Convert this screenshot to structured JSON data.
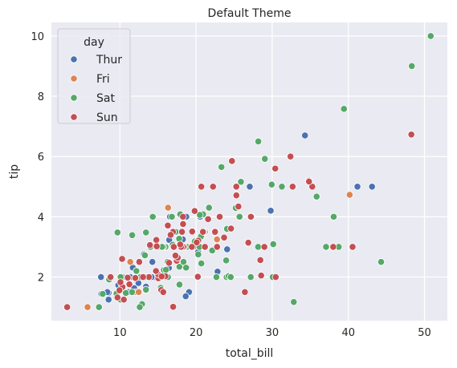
{
  "chart_data": {
    "type": "scatter",
    "title": "Default Theme",
    "xlabel": "total_bill",
    "ylabel": "tip",
    "xlim": [
      1.0,
      53.0
    ],
    "ylim": [
      0.55,
      10.45
    ],
    "xticks": [
      10,
      20,
      30,
      40,
      50
    ],
    "yticks": [
      2,
      4,
      6,
      8,
      10
    ],
    "grid": true,
    "legend": {
      "title": "day",
      "placement": "top-left"
    },
    "series": [
      {
        "name": "Thur",
        "color": "#4c72b0",
        "points": [
          [
            27.2,
            4.0
          ],
          [
            22.76,
            3.0
          ],
          [
            17.29,
            2.71
          ],
          [
            19.44,
            3.0
          ],
          [
            16.66,
            3.4
          ],
          [
            10.07,
            1.83
          ],
          [
            32.68,
            5.0
          ],
          [
            15.98,
            2.03
          ],
          [
            34.83,
            5.17
          ],
          [
            13.03,
            2.0
          ],
          [
            18.28,
            4.0
          ],
          [
            24.71,
            5.85
          ],
          [
            21.16,
            3.0
          ],
          [
            28.97,
            3.0
          ],
          [
            22.49,
            3.5
          ],
          [
            5.75,
            1.0
          ],
          [
            16.32,
            4.3
          ],
          [
            22.75,
            3.25
          ],
          [
            40.17,
            4.73
          ],
          [
            27.28,
            4.0
          ],
          [
            12.03,
            1.5
          ],
          [
            21.01,
            3.0
          ],
          [
            12.46,
            1.5
          ],
          [
            11.35,
            2.5
          ],
          [
            15.38,
            3.0
          ],
          [
            44.3,
            2.5
          ],
          [
            22.42,
            3.48
          ],
          [
            20.92,
            4.08
          ],
          [
            15.36,
            1.64
          ],
          [
            20.49,
            4.06
          ],
          [
            25.21,
            4.29
          ],
          [
            18.24,
            3.76
          ],
          [
            14.31,
            4.0
          ],
          [
            14.0,
            3.0
          ],
          [
            7.25,
            1.0
          ],
          [
            38.07,
            4.0
          ],
          [
            23.95,
            2.55
          ],
          [
            25.71,
            4.0
          ],
          [
            17.31,
            3.5
          ],
          [
            29.93,
            5.07
          ],
          [
            10.65,
            1.5
          ],
          [
            12.43,
            1.8
          ],
          [
            24.08,
            2.92
          ],
          [
            11.69,
            2.31
          ],
          [
            13.42,
            1.68
          ],
          [
            14.26,
            2.5
          ],
          [
            15.95,
            2.0
          ],
          [
            12.48,
            2.52
          ],
          [
            29.8,
            4.2
          ],
          [
            8.52,
            1.48
          ],
          [
            14.52,
            2.0
          ],
          [
            11.38,
            2.0
          ],
          [
            22.82,
            2.18
          ],
          [
            19.08,
            1.5
          ],
          [
            20.27,
            2.83
          ],
          [
            11.17,
            1.5
          ],
          [
            12.26,
            2.0
          ],
          [
            18.26,
            3.25
          ],
          [
            8.51,
            1.25
          ],
          [
            10.33,
            2.0
          ],
          [
            14.15,
            2.0
          ],
          [
            16.0,
            2.0
          ],
          [
            13.16,
            2.75
          ],
          [
            17.47,
            3.5
          ],
          [
            34.3,
            6.7
          ],
          [
            41.19,
            5.0
          ],
          [
            27.05,
            5.0
          ],
          [
            16.43,
            2.3
          ],
          [
            8.35,
            1.5
          ],
          [
            18.64,
            1.36
          ],
          [
            11.87,
            1.63
          ],
          [
            9.78,
            1.73
          ],
          [
            7.51,
            2.0
          ],
          [
            19.81,
            4.19
          ],
          [
            28.44,
            2.56
          ],
          [
            15.48,
            2.02
          ],
          [
            16.58,
            4.0
          ],
          [
            7.56,
            1.44
          ],
          [
            10.34,
            2.0
          ],
          [
            43.11,
            5.0
          ],
          [
            13.0,
            2.0
          ],
          [
            13.51,
            2.0
          ],
          [
            18.71,
            4.0
          ],
          [
            12.74,
            2.01
          ],
          [
            13.0,
            2.0
          ],
          [
            16.4,
            2.5
          ],
          [
            20.53,
            4.0
          ],
          [
            16.47,
            3.23
          ]
        ]
      },
      {
        "name": "Fri",
        "color": "#dd8452",
        "points": [
          [
            28.97,
            3.0
          ],
          [
            22.49,
            3.5
          ],
          [
            5.75,
            1.0
          ],
          [
            16.32,
            4.3
          ],
          [
            22.75,
            3.25
          ],
          [
            40.17,
            4.73
          ],
          [
            27.28,
            4.0
          ],
          [
            12.03,
            1.5
          ],
          [
            21.01,
            3.0
          ],
          [
            12.46,
            1.5
          ],
          [
            11.35,
            2.5
          ],
          [
            15.38,
            3.0
          ],
          [
            12.16,
            2.2
          ],
          [
            13.42,
            3.48
          ],
          [
            8.58,
            1.92
          ],
          [
            15.98,
            3.0
          ],
          [
            13.42,
            1.58
          ],
          [
            16.27,
            2.5
          ],
          [
            10.09,
            2.0
          ]
        ]
      },
      {
        "name": "Sat",
        "color": "#55a868",
        "points": [
          [
            20.65,
            3.35
          ],
          [
            17.92,
            4.08
          ],
          [
            20.29,
            2.75
          ],
          [
            15.77,
            2.23
          ],
          [
            39.42,
            7.58
          ],
          [
            19.82,
            3.18
          ],
          [
            17.81,
            2.34
          ],
          [
            13.37,
            2.0
          ],
          [
            12.69,
            2.0
          ],
          [
            21.7,
            4.3
          ],
          [
            19.65,
            3.0
          ],
          [
            9.55,
            1.45
          ],
          [
            18.35,
            2.5
          ],
          [
            15.06,
            3.0
          ],
          [
            20.69,
            2.45
          ],
          [
            17.78,
            3.27
          ],
          [
            24.06,
            3.6
          ],
          [
            16.31,
            2.0
          ],
          [
            16.93,
            3.07
          ],
          [
            18.69,
            2.31
          ],
          [
            31.27,
            5.0
          ],
          [
            16.04,
            2.24
          ],
          [
            3.07,
            1.0
          ],
          [
            20.23,
            2.01
          ],
          [
            15.01,
            2.09
          ],
          [
            12.02,
            1.97
          ],
          [
            17.07,
            3.0
          ],
          [
            26.86,
            3.14
          ],
          [
            25.28,
            5.0
          ],
          [
            14.73,
            2.2
          ],
          [
            10.51,
            1.25
          ],
          [
            17.92,
            3.08
          ],
          [
            44.3,
            2.5
          ],
          [
            22.42,
            3.48
          ],
          [
            20.92,
            4.08
          ],
          [
            15.36,
            1.64
          ],
          [
            20.49,
            4.06
          ],
          [
            25.21,
            4.29
          ],
          [
            18.24,
            3.76
          ],
          [
            14.31,
            4.0
          ],
          [
            14.0,
            3.0
          ],
          [
            7.25,
            1.0
          ],
          [
            38.07,
            4.0
          ],
          [
            23.95,
            2.55
          ],
          [
            25.71,
            4.0
          ],
          [
            17.31,
            3.5
          ],
          [
            29.93,
            5.07
          ],
          [
            48.27,
            6.73
          ],
          [
            28.17,
            6.5
          ],
          [
            12.9,
            1.1
          ],
          [
            28.15,
            3.0
          ],
          [
            11.59,
            1.5
          ],
          [
            7.74,
            1.44
          ],
          [
            30.14,
            3.09
          ],
          [
            12.16,
            2.2
          ],
          [
            13.42,
            3.48
          ],
          [
            8.58,
            1.92
          ],
          [
            15.98,
            3.0
          ],
          [
            13.42,
            1.58
          ],
          [
            16.27,
            2.5
          ],
          [
            10.09,
            2.0
          ],
          [
            20.45,
            3.0
          ],
          [
            13.28,
            2.72
          ],
          [
            22.12,
            2.88
          ],
          [
            24.01,
            2.0
          ],
          [
            15.69,
            3.0
          ],
          [
            11.61,
            3.39
          ],
          [
            10.77,
            1.47
          ],
          [
            15.53,
            3.0
          ],
          [
            10.07,
            1.25
          ],
          [
            12.6,
            1.0
          ],
          [
            32.83,
            1.17
          ],
          [
            35.83,
            4.67
          ],
          [
            29.03,
            5.92
          ],
          [
            27.18,
            2.0
          ],
          [
            22.67,
            2.0
          ],
          [
            17.82,
            1.75
          ],
          [
            18.78,
            3.0
          ],
          [
            13.81,
            2.0
          ],
          [
            11.02,
            1.98
          ],
          [
            50.81,
            10.0
          ],
          [
            48.33,
            9.0
          ],
          [
            12.54,
            2.5
          ],
          [
            9.68,
            3.48
          ],
          [
            20.08,
            3.15
          ],
          [
            23.33,
            5.65
          ],
          [
            26.41,
            1.5
          ],
          [
            24.27,
            2.03
          ],
          [
            21.17,
            3.5
          ],
          [
            38.73,
            3.0
          ],
          [
            24.55,
            2.0
          ],
          [
            25.89,
            5.16
          ],
          [
            30.06,
            2.0
          ],
          [
            16.82,
            4.0
          ],
          [
            25.56,
            4.34
          ],
          [
            37.07,
            3.0
          ]
        ]
      },
      {
        "name": "Sun",
        "color": "#c44e52",
        "points": [
          [
            16.99,
            1.01
          ],
          [
            10.34,
            1.66
          ],
          [
            21.01,
            3.5
          ],
          [
            23.68,
            3.31
          ],
          [
            24.59,
            3.61
          ],
          [
            25.29,
            4.71
          ],
          [
            8.77,
            2.0
          ],
          [
            26.88,
            3.12
          ],
          [
            15.04,
            1.96
          ],
          [
            14.78,
            3.23
          ],
          [
            10.27,
            1.71
          ],
          [
            35.26,
            5.0
          ],
          [
            15.42,
            1.57
          ],
          [
            18.43,
            3.0
          ],
          [
            14.83,
            3.02
          ],
          [
            21.58,
            3.92
          ],
          [
            10.33,
            1.67
          ],
          [
            16.29,
            3.71
          ],
          [
            16.97,
            3.5
          ],
          [
            17.46,
            2.54
          ],
          [
            13.94,
            3.06
          ],
          [
            9.68,
            1.32
          ],
          [
            30.4,
            5.6
          ],
          [
            18.29,
            3.0
          ],
          [
            22.23,
            5.0
          ],
          [
            32.4,
            6.0
          ],
          [
            28.55,
            2.05
          ],
          [
            18.04,
            3.0
          ],
          [
            12.54,
            2.5
          ],
          [
            10.29,
            2.6
          ],
          [
            34.81,
            5.2
          ],
          [
            9.94,
            1.56
          ],
          [
            25.56,
            4.34
          ],
          [
            19.49,
            3.51
          ],
          [
            38.01,
            3.0
          ],
          [
            26.41,
            1.5
          ],
          [
            11.24,
            1.76
          ],
          [
            48.27,
            6.73
          ],
          [
            20.29,
            3.21
          ],
          [
            13.81,
            2.0
          ],
          [
            11.02,
            1.98
          ],
          [
            18.29,
            3.76
          ],
          [
            17.59,
            2.64
          ],
          [
            20.08,
            3.15
          ],
          [
            16.45,
            2.47
          ],
          [
            3.07,
            1.0
          ],
          [
            20.23,
            2.01
          ],
          [
            15.01,
            2.09
          ],
          [
            12.02,
            1.97
          ],
          [
            17.07,
            3.0
          ],
          [
            26.86,
            3.14
          ],
          [
            25.28,
            5.0
          ],
          [
            14.73,
            2.2
          ],
          [
            10.51,
            1.25
          ],
          [
            17.92,
            3.08
          ],
          [
            27.2,
            4.0
          ],
          [
            22.76,
            3.0
          ],
          [
            17.29,
            2.71
          ],
          [
            19.44,
            3.0
          ],
          [
            16.66,
            3.4
          ],
          [
            10.07,
            1.83
          ],
          [
            32.68,
            5.0
          ],
          [
            15.98,
            2.03
          ],
          [
            34.83,
            5.17
          ],
          [
            13.03,
            2.0
          ],
          [
            18.28,
            4.0
          ],
          [
            24.71,
            5.85
          ],
          [
            21.16,
            3.0
          ],
          [
            28.97,
            3.0
          ],
          [
            22.49,
            3.5
          ],
          [
            40.55,
            3.0
          ],
          [
            20.69,
            5.0
          ],
          [
            20.9,
            3.5
          ],
          [
            30.46,
            2.0
          ],
          [
            18.15,
            3.5
          ],
          [
            23.1,
            4.0
          ],
          [
            15.69,
            1.5
          ],
          [
            19.81,
            4.19
          ],
          [
            28.44,
            2.56
          ],
          [
            15.48,
            2.02
          ]
        ]
      }
    ]
  }
}
